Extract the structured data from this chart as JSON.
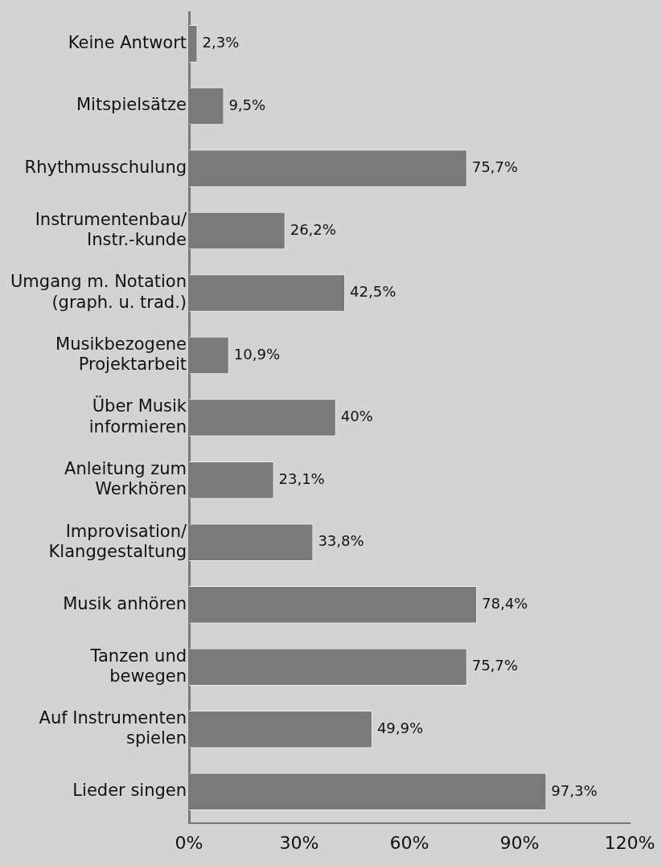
{
  "chart_data": {
    "type": "bar",
    "orientation": "horizontal",
    "categories": [
      "Keine Antwort",
      "Mitspielsätze",
      "Rhythmusschulung",
      "Instrumentenbau/\nInstr.-kunde",
      "Umgang m. Notation\n(graph. u. trad.)",
      "Musikbezogene\nProjektarbeit",
      "Über Musik\ninformieren",
      "Anleitung zum\nWerkhören",
      "Improvisation/\nKlanggestaltung",
      "Musik anhören",
      "Tanzen und\nbewegen",
      "Auf Instrumenten\nspielen",
      "Lieder singen"
    ],
    "values": [
      2.3,
      9.5,
      75.7,
      26.2,
      42.5,
      10.9,
      40,
      23.1,
      33.8,
      78.4,
      75.7,
      49.9,
      97.3
    ],
    "value_labels": [
      "2,3%",
      "9,5%",
      "75,7%",
      "26,2%",
      "42,5%",
      "10,9%",
      "40%",
      "23,1%",
      "33,8%",
      "78,4%",
      "75,7%",
      "49,9%",
      "97,3%"
    ],
    "color": "#7a7a7a",
    "xlim": [
      0,
      120
    ],
    "xticks": [
      {
        "value": 0,
        "label": "0%"
      },
      {
        "value": 30,
        "label": "30%"
      },
      {
        "value": 60,
        "label": "60%"
      },
      {
        "value": 90,
        "label": "90%"
      },
      {
        "value": 120,
        "label": "120%"
      }
    ],
    "grid": false,
    "legend": false
  }
}
